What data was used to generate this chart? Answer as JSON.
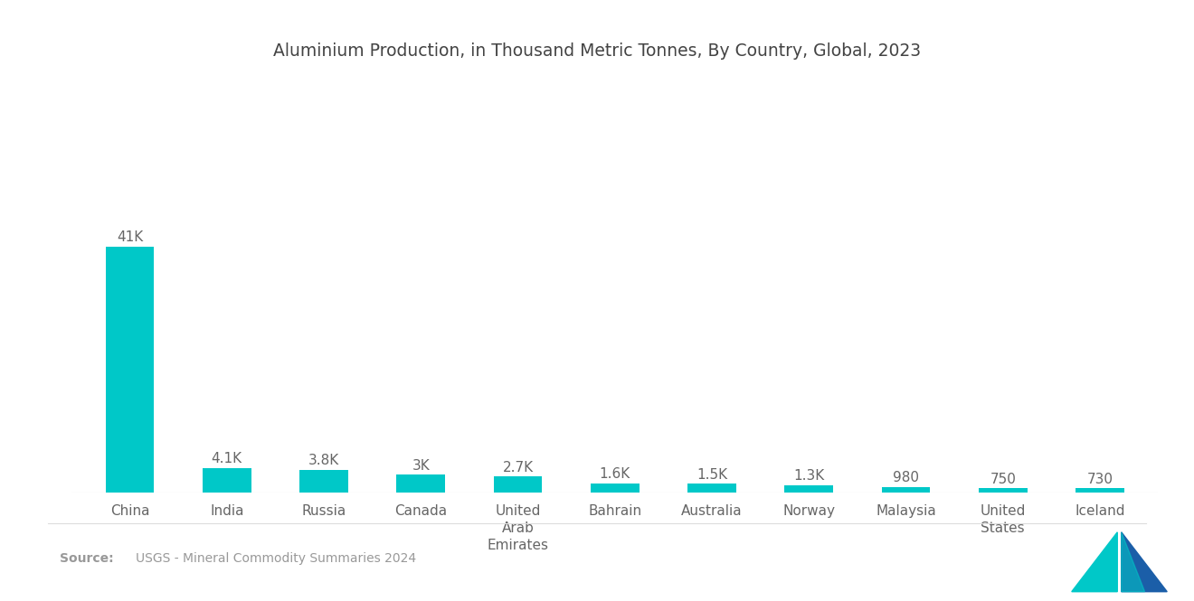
{
  "title": "Aluminium Production, in Thousand Metric Tonnes, By Country, Global, 2023",
  "categories": [
    "China",
    "India",
    "Russia",
    "Canada",
    "United\nArab\nEmirates",
    "Bahrain",
    "Australia",
    "Norway",
    "Malaysia",
    "United\nStates",
    "Iceland"
  ],
  "values": [
    41000,
    4100,
    3800,
    3000,
    2700,
    1600,
    1500,
    1300,
    980,
    750,
    730
  ],
  "labels": [
    "41K",
    "4.1K",
    "3.8K",
    "3K",
    "2.7K",
    "1.6K",
    "1.5K",
    "1.3K",
    "980",
    "750",
    "730"
  ],
  "bar_color": "#00C8C8",
  "background_color": "#ffffff",
  "title_color": "#444444",
  "label_color": "#666666",
  "source_bold": "Source:",
  "source_text": "  USGS - Mineral Commodity Summaries 2024",
  "source_color": "#999999",
  "title_fontsize": 13.5,
  "label_fontsize": 11,
  "tick_fontsize": 11,
  "teal_color": "#00C8C8",
  "blue_color": "#1B5EA8"
}
